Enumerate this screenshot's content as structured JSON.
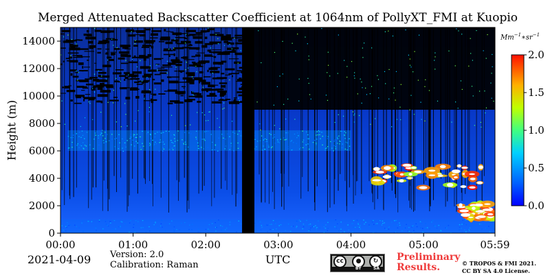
{
  "chart_data": {
    "type": "heatmap",
    "title": "Merged Attenuated Backscatter Coefficient at 1064nm of PollyXT_FMI at Kuopio",
    "ylabel": "Height (m)",
    "xlabel": "UTC",
    "x_ticks": [
      "00:00",
      "01:00",
      "02:00",
      "03:00",
      "04:00",
      "05:00",
      "05:59"
    ],
    "y_ticks": [
      0,
      2000,
      4000,
      6000,
      8000,
      10000,
      12000,
      14000
    ],
    "ylim": [
      0,
      15000
    ],
    "x_range_hours": [
      0,
      5.983
    ],
    "colorbar": {
      "label": "Mm-1*sr-1",
      "range": [
        0,
        2.0
      ],
      "ticks": [
        "0.0",
        "0.5",
        "1.0",
        "1.5",
        "2.0"
      ],
      "colormap": "jet"
    },
    "data_gap_hours": [
      2.5,
      2.67
    ],
    "features": [
      {
        "name": "aerosol layer",
        "x_hours": [
          0.1,
          4.0
        ],
        "height_m": [
          6000,
          7500
        ],
        "value": 0.5
      },
      {
        "name": "boundary layer",
        "x_hours": [
          0,
          5.983
        ],
        "height_m": [
          0,
          1000
        ],
        "value": 0.35
      },
      {
        "name": "cloud",
        "x_hours": [
          4.3,
          5.8
        ],
        "height_m": [
          3300,
          5000
        ],
        "value": 2.0
      },
      {
        "name": "low cloud",
        "x_hours": [
          5.5,
          5.95
        ],
        "height_m": [
          1000,
          2200
        ],
        "value": 2.0
      }
    ]
  },
  "footer": {
    "date": "2021-04-09",
    "version": "Version: 2.0",
    "calibration": "Calibration: Raman",
    "preliminary_line1": "Preliminary",
    "preliminary_line2": "Results.",
    "copyright_line1": "© TROPOS & FMI 2021.",
    "copyright_line2": "CC BY SA 4.0 License.",
    "cc_by": "BY",
    "cc_sa": "SA",
    "cc_mark": "cc"
  },
  "unit": {
    "base": "Mm",
    "exp1": "−1",
    "mid": "∗sr",
    "exp2": "−1"
  }
}
